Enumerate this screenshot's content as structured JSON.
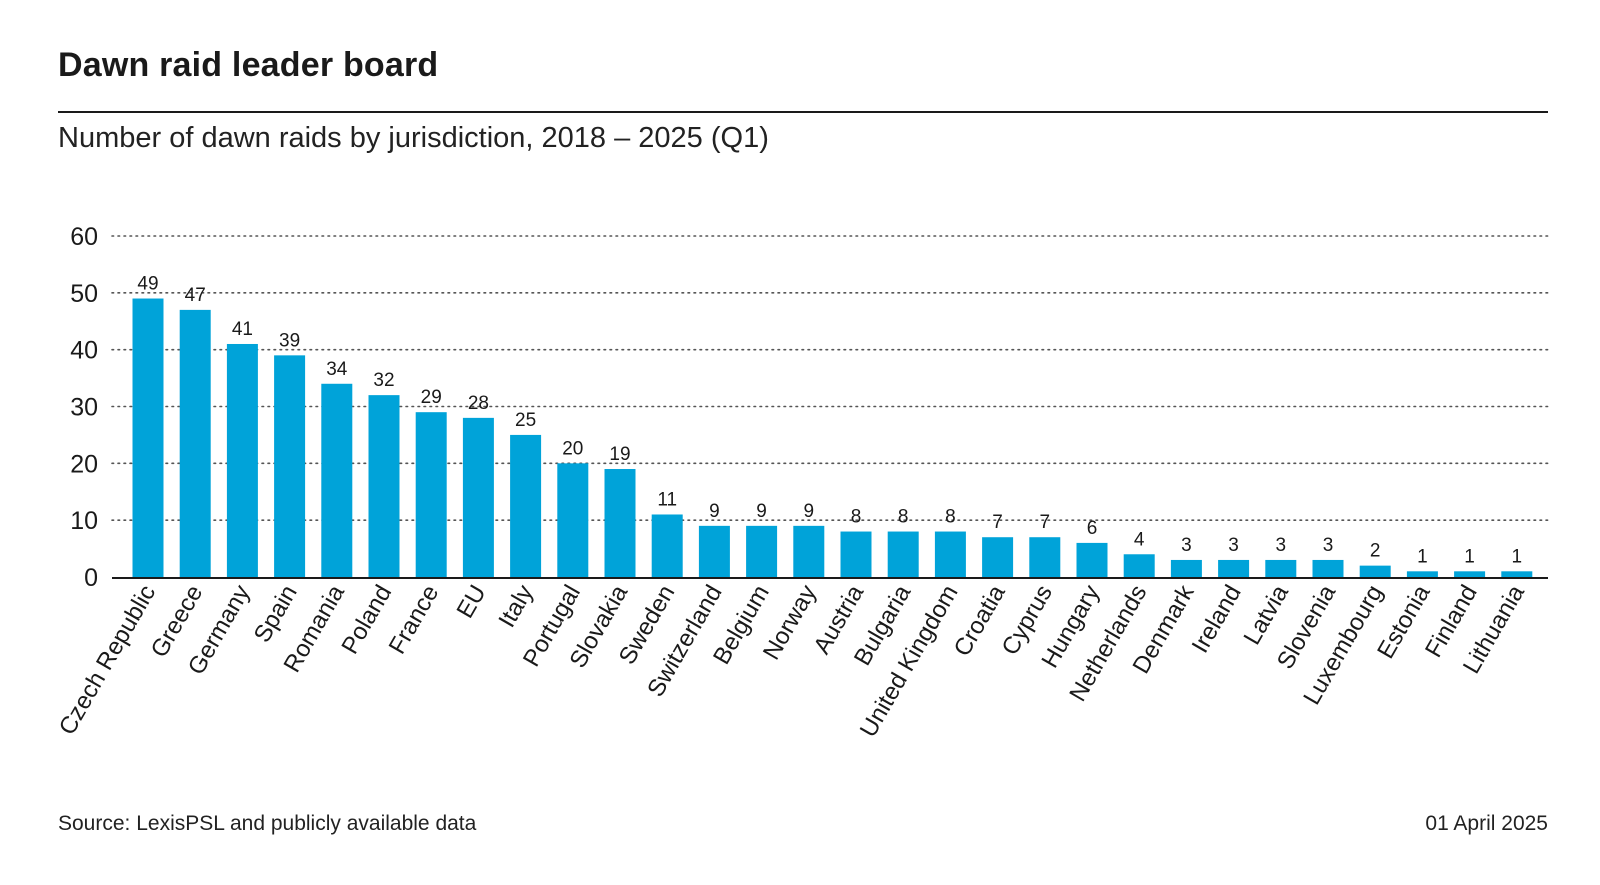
{
  "header": {
    "title": "Dawn raid leader board",
    "subtitle": "Number of dawn raids by jurisdiction, 2018 – 2025 (Q1)"
  },
  "footer": {
    "source": "Source: LexisPSL and publicly available data",
    "date": "01 April 2025"
  },
  "colors": {
    "bar": "#00a3d9",
    "grid": "#555555",
    "text": "#1a1a1a"
  },
  "chart_data": {
    "type": "bar",
    "title": "Dawn raid leader board",
    "subtitle": "Number of dawn raids by jurisdiction, 2018 – 2025 (Q1)",
    "xlabel": "",
    "ylabel": "",
    "ylim": [
      0,
      60
    ],
    "yticks": [
      0,
      10,
      20,
      30,
      40,
      50,
      60
    ],
    "grid": "horizontal dotted",
    "legend": "none",
    "categories": [
      "Czech Republic",
      "Greece",
      "Germany",
      "Spain",
      "Romania",
      "Poland",
      "France",
      "EU",
      "Italy",
      "Portugal",
      "Slovakia",
      "Sweden",
      "Switzerland",
      "Belgium",
      "Norway",
      "Austria",
      "Bulgaria",
      "United Kingdom",
      "Croatia",
      "Cyprus",
      "Hungary",
      "Netherlands",
      "Denmark",
      "Ireland",
      "Latvia",
      "Slovenia",
      "Luxembourg",
      "Estonia",
      "Finland",
      "Lithuania"
    ],
    "values": [
      49,
      47,
      41,
      39,
      34,
      32,
      29,
      28,
      25,
      20,
      19,
      11,
      9,
      9,
      9,
      8,
      8,
      8,
      7,
      7,
      6,
      4,
      3,
      3,
      3,
      3,
      2,
      1,
      1,
      1
    ]
  }
}
